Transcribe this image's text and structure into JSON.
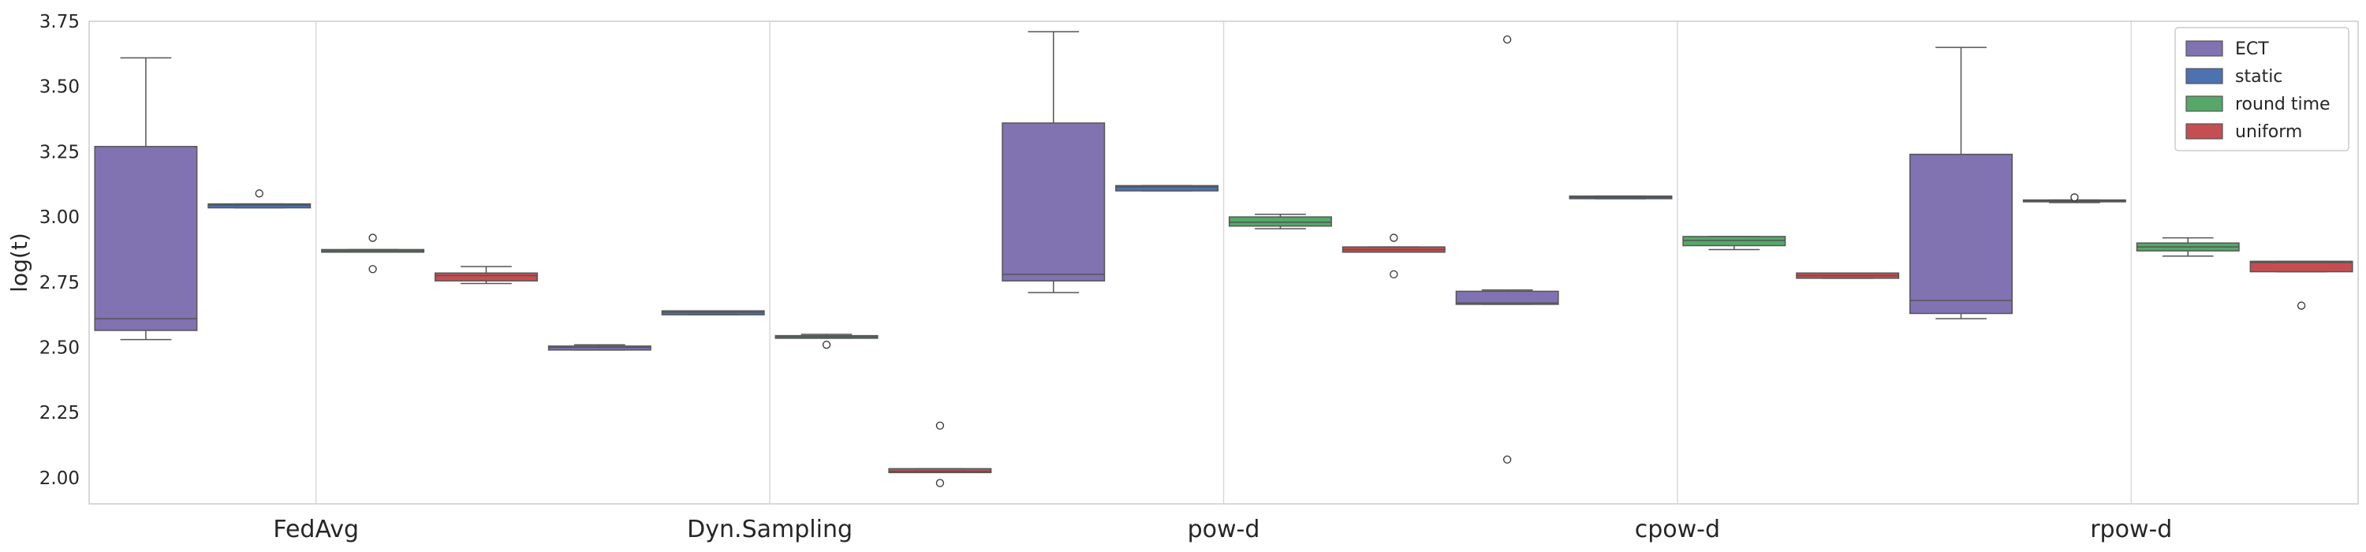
{
  "chart_data": {
    "type": "box",
    "title": "",
    "xlabel": "",
    "ylabel": "log(t)",
    "ylim": [
      1.9,
      3.75
    ],
    "yticks": [
      "2.00",
      "2.25",
      "2.50",
      "2.75",
      "3.00",
      "3.25",
      "3.50",
      "3.75"
    ],
    "grid": true,
    "legend_position": "top-right",
    "categories": [
      "FedAvg",
      "Dyn.Sampling",
      "pow-d",
      "cpow-d",
      "rpow-d"
    ],
    "series": [
      {
        "name": "ECT",
        "color": "#8172b2",
        "boxes": [
          {
            "whislo": 2.53,
            "q1": 2.565,
            "med": 2.61,
            "q3": 3.27,
            "whishi": 3.61,
            "fliers": []
          },
          {
            "whislo": 2.49,
            "q1": 2.49,
            "med": 2.5,
            "q3": 2.505,
            "whishi": 2.51,
            "fliers": []
          },
          {
            "whislo": 2.71,
            "q1": 2.755,
            "med": 2.78,
            "q3": 3.36,
            "whishi": 3.71,
            "fliers": []
          },
          {
            "whislo": 2.665,
            "q1": 2.665,
            "med": 2.67,
            "q3": 2.715,
            "whishi": 2.72,
            "fliers": [
              2.07,
              3.68
            ]
          },
          {
            "whislo": 2.61,
            "q1": 2.63,
            "med": 2.68,
            "q3": 3.24,
            "whishi": 3.65,
            "fliers": []
          }
        ]
      },
      {
        "name": "static",
        "color": "#4c72b0",
        "boxes": [
          {
            "whislo": 3.035,
            "q1": 3.035,
            "med": 3.045,
            "q3": 3.05,
            "whishi": 3.05,
            "fliers": [
              3.09
            ]
          },
          {
            "whislo": 2.625,
            "q1": 2.625,
            "med": 2.635,
            "q3": 2.64,
            "whishi": 2.64,
            "fliers": []
          },
          {
            "whislo": 3.1,
            "q1": 3.1,
            "med": 3.115,
            "q3": 3.12,
            "whishi": 3.12,
            "fliers": []
          },
          {
            "whislo": 3.07,
            "q1": 3.07,
            "med": 3.075,
            "q3": 3.08,
            "whishi": 3.08,
            "fliers": []
          },
          {
            "whislo": 3.055,
            "q1": 3.058,
            "med": 3.062,
            "q3": 3.065,
            "whishi": 3.065,
            "fliers": [
              3.075
            ]
          }
        ]
      },
      {
        "name": "round time",
        "color": "#55a868",
        "boxes": [
          {
            "whislo": 2.865,
            "q1": 2.865,
            "med": 2.87,
            "q3": 2.875,
            "whishi": 2.875,
            "fliers": [
              2.92,
              2.8
            ]
          },
          {
            "whislo": 2.535,
            "q1": 2.535,
            "med": 2.54,
            "q3": 2.545,
            "whishi": 2.55,
            "fliers": [
              2.51
            ]
          },
          {
            "whislo": 2.955,
            "q1": 2.965,
            "med": 2.98,
            "q3": 3.0,
            "whishi": 3.01,
            "fliers": []
          },
          {
            "whislo": 2.875,
            "q1": 2.89,
            "med": 2.91,
            "q3": 2.925,
            "whishi": 2.925,
            "fliers": []
          },
          {
            "whislo": 2.85,
            "q1": 2.87,
            "med": 2.885,
            "q3": 2.9,
            "whishi": 2.92,
            "fliers": []
          }
        ]
      },
      {
        "name": "uniform",
        "color": "#c44e52",
        "boxes": [
          {
            "whislo": 2.745,
            "q1": 2.755,
            "med": 2.775,
            "q3": 2.785,
            "whishi": 2.81,
            "fliers": []
          },
          {
            "whislo": 2.02,
            "q1": 2.02,
            "med": 2.025,
            "q3": 2.035,
            "whishi": 2.035,
            "fliers": [
              2.2,
              1.98
            ]
          },
          {
            "whislo": 2.865,
            "q1": 2.865,
            "med": 2.875,
            "q3": 2.885,
            "whishi": 2.885,
            "fliers": [
              2.92,
              2.78
            ]
          },
          {
            "whislo": 2.765,
            "q1": 2.765,
            "med": 2.775,
            "q3": 2.785,
            "whishi": 2.785,
            "fliers": []
          },
          {
            "whislo": 2.79,
            "q1": 2.79,
            "med": 2.825,
            "q3": 2.83,
            "whishi": 2.83,
            "fliers": [
              2.66
            ]
          }
        ]
      }
    ]
  }
}
